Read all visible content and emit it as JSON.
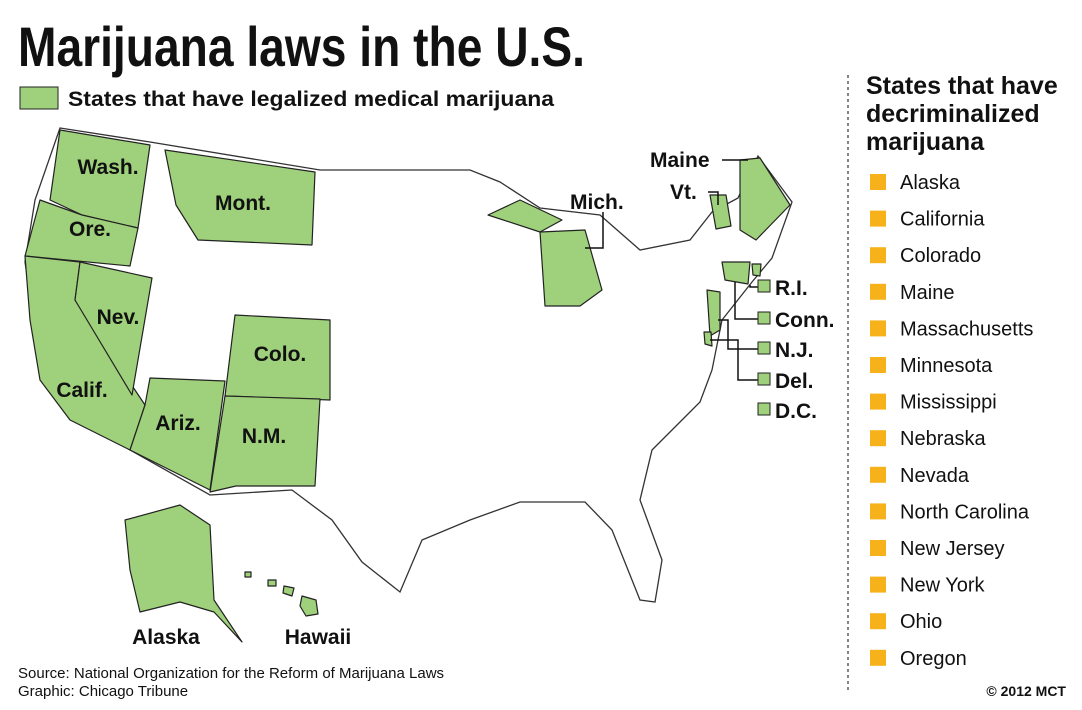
{
  "title": "Marijuana laws in the U.S.",
  "legend": {
    "label": "States that have legalized medical marijuana",
    "color": "#9fd07b"
  },
  "map_labels": [
    "Wash.",
    "Ore.",
    "Calif.",
    "Nev.",
    "Mont.",
    "Colo.",
    "Ariz.",
    "N.M.",
    "Mich.",
    "Maine",
    "Vt.",
    "R.I.",
    "Conn.",
    "N.J.",
    "Del.",
    "D.C.",
    "Alaska",
    "Hawaii"
  ],
  "sidebar": {
    "title_lines": [
      "States that have",
      "decriminalized",
      "marijuana"
    ],
    "marker_color": "#f7b21b",
    "states": [
      "Alaska",
      "California",
      "Colorado",
      "Maine",
      "Massachusetts",
      "Minnesota",
      "Mississippi",
      "Nebraska",
      "Nevada",
      "North Carolina",
      "New Jersey",
      "New York",
      "Ohio",
      "Oregon"
    ]
  },
  "source": "Source: National Organization for the Reform of Marijuana Laws",
  "credit": "Graphic: Chicago Tribune",
  "copyright": "© 2012 MCT"
}
